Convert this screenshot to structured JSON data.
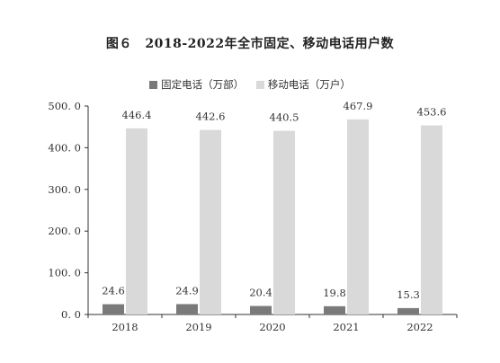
{
  "colors": {
    "fixed": "#7a7a7a",
    "mobile": "#d9d9d9",
    "axis": "#333333"
  },
  "chart_data": {
    "type": "bar",
    "title": "图６　2018-2022年全市固定、移动电话用户数",
    "categories": [
      "2018",
      "2019",
      "2020",
      "2021",
      "2022"
    ],
    "series": [
      {
        "name": "固定电话（万部）",
        "values": [
          24.6,
          24.9,
          20.4,
          19.8,
          15.3
        ],
        "labels": [
          "24.6",
          "24.9",
          "20.4",
          "19.8",
          "15.3"
        ]
      },
      {
        "name": "移动电话（万户）",
        "values": [
          446.4,
          442.6,
          440.5,
          467.9,
          453.6
        ],
        "labels": [
          "446.4",
          "442.6",
          "440.5",
          "467.9",
          "453.6"
        ]
      }
    ],
    "yticks": [
      "0. 0",
      "100. 0",
      "200. 0",
      "300. 0",
      "400. 0",
      "500. 0"
    ],
    "ylim": [
      0,
      500
    ],
    "legend": "top-center",
    "grid": false
  }
}
